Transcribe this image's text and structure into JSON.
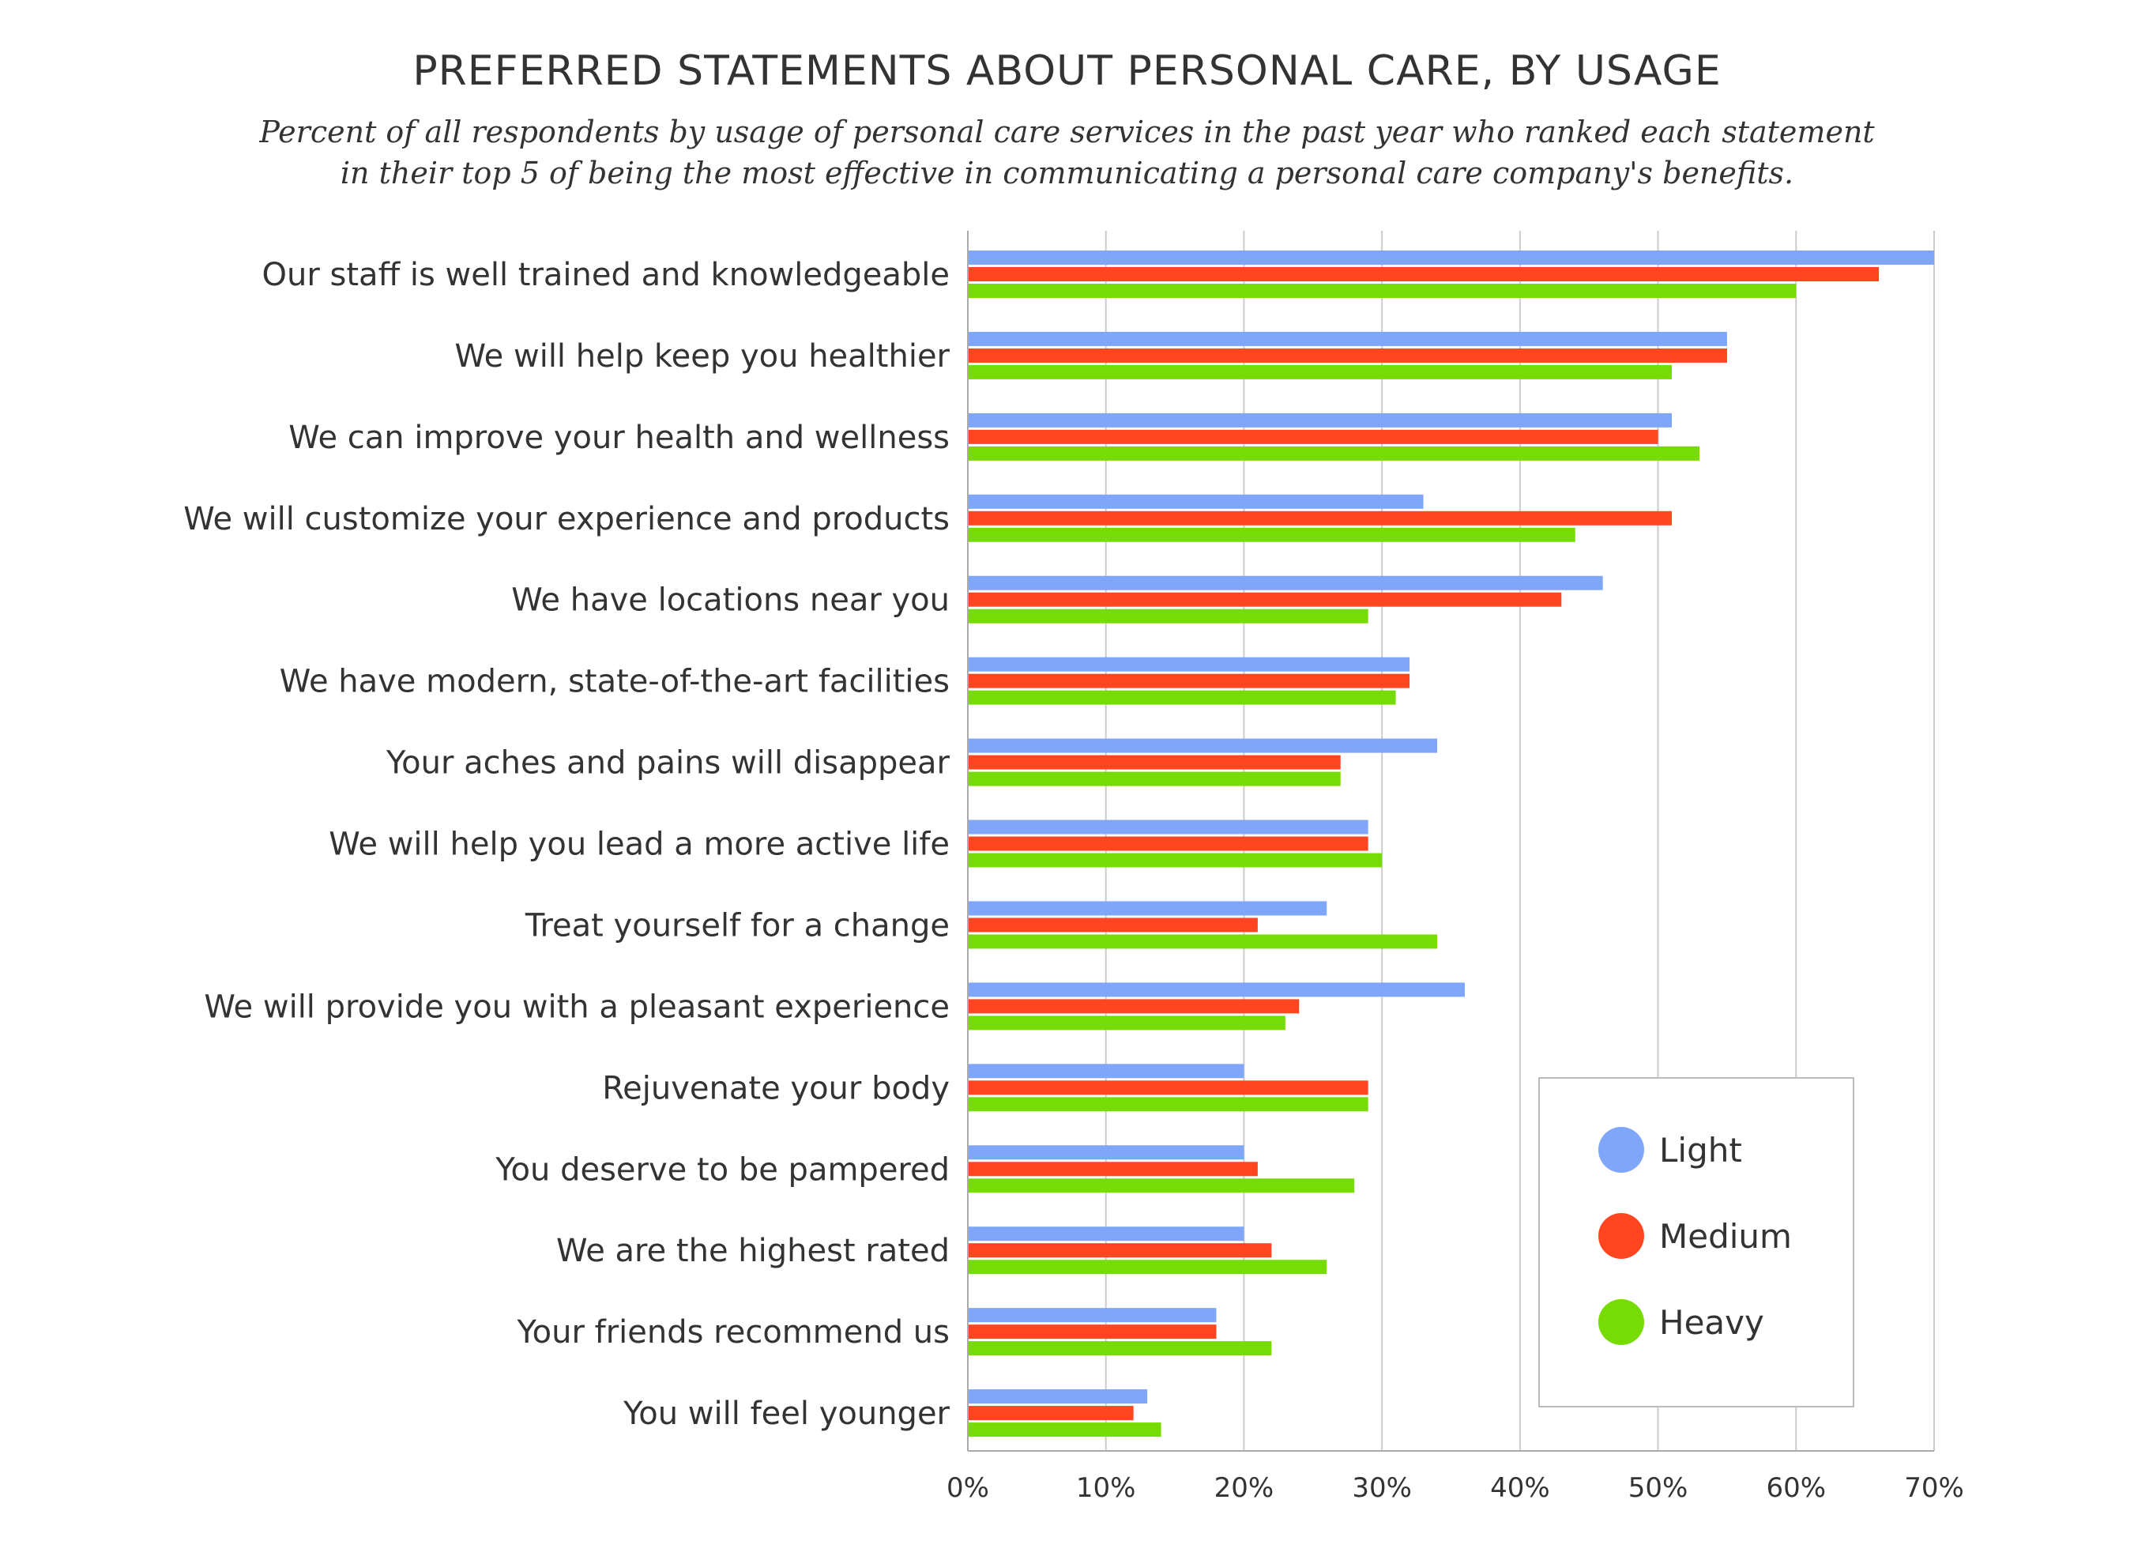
{
  "chart_data": {
    "type": "bar",
    "orientation": "horizontal",
    "title": "PREFERRED STATEMENTS ABOUT PERSONAL CARE, BY USAGE",
    "subtitle_lines": [
      "Percent of all respondents by usage of personal care services in the past year who ranked each statement",
      "in their top 5 of being the most effective in communicating a personal care company's benefits."
    ],
    "categories": [
      "Our staff is well trained and knowledgeable",
      "We will help keep you healthier",
      "We can improve your health and wellness",
      "We will customize your experience and products",
      "We have locations near you",
      "We have modern, state-of-the-art facilities",
      "Your aches and pains will disappear",
      "We will help you lead a more active life",
      "Treat yourself for a change",
      "We will provide you with a pleasant experience",
      "Rejuvenate your body",
      "You deserve to be pampered",
      "We are the highest rated",
      "Your friends recommend us",
      "You will feel younger"
    ],
    "series": [
      {
        "name": "Light",
        "color": "#7FA6F8",
        "values": [
          70,
          55,
          51,
          33,
          46,
          32,
          34,
          29,
          26,
          36,
          20,
          20,
          20,
          18,
          13
        ]
      },
      {
        "name": "Medium",
        "color": "#FF4621",
        "values": [
          66,
          55,
          50,
          51,
          43,
          32,
          27,
          29,
          21,
          24,
          29,
          21,
          22,
          18,
          12
        ]
      },
      {
        "name": "Heavy",
        "color": "#77DC06",
        "values": [
          60,
          51,
          53,
          44,
          29,
          31,
          27,
          30,
          34,
          23,
          29,
          28,
          26,
          22,
          14
        ]
      }
    ],
    "xlim": [
      0,
      70
    ],
    "xticks": [
      "0%",
      "10%",
      "20%",
      "30%",
      "40%",
      "50%",
      "60%",
      "70%"
    ],
    "grid": true,
    "legend_position": "bottom-right"
  }
}
